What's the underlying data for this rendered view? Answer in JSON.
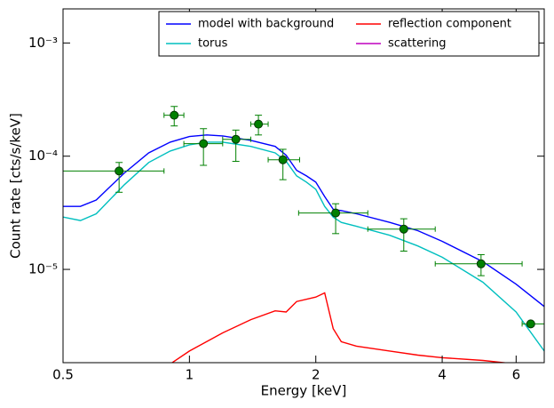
{
  "chart_data": {
    "type": "line",
    "xlabel": "Energy [keV]",
    "ylabel": "Count rate [cts/s/keV]",
    "xscale": "log",
    "yscale": "log",
    "xlim": [
      0.5,
      7
    ],
    "ylim": [
      1.5e-06,
      0.002
    ],
    "xticks": [
      0.5,
      1,
      2,
      4,
      6
    ],
    "yticks": [
      {
        "value": 1e-05,
        "label": "10⁻⁵"
      },
      {
        "value": 0.0001,
        "label": "10⁻⁴"
      },
      {
        "value": 0.001,
        "label": "10⁻³"
      }
    ],
    "legend": "upper right",
    "legend_columns": 2,
    "x": [
      0.5,
      0.55,
      0.6,
      0.7,
      0.8,
      0.9,
      1.0,
      1.1,
      1.2,
      1.4,
      1.6,
      1.7,
      1.8,
      1.9,
      2.0,
      2.1,
      2.2,
      2.3,
      2.5,
      3.0,
      3.5,
      4.0,
      5.0,
      6.0,
      7.0
    ],
    "series": [
      {
        "name": "model with background",
        "color": "#0000ff",
        "values": [
          3.6e-05,
          3.6e-05,
          4.1e-05,
          7.1e-05,
          0.000107,
          0.000133,
          0.000149,
          0.000154,
          0.000151,
          0.000138,
          0.000122,
          0.000102,
          7.5e-05,
          6.7e-05,
          5.9e-05,
          4.4e-05,
          3.4e-05,
          3.3e-05,
          3.1e-05,
          2.6e-05,
          2.2e-05,
          1.77e-05,
          1.17e-05,
          7.4e-06,
          4.7e-06
        ]
      },
      {
        "name": "torus",
        "color": "#00bfbf",
        "values": [
          2.9e-05,
          2.7e-05,
          3.1e-05,
          5.6e-05,
          8.8e-05,
          0.000111,
          0.000126,
          0.000133,
          0.000133,
          0.000122,
          0.000107,
          9e-05,
          6.7e-05,
          5.9e-05,
          5.1e-05,
          3.6e-05,
          2.9e-05,
          2.6e-05,
          2.4e-05,
          2e-05,
          1.61e-05,
          1.28e-05,
          7.7e-06,
          4.2e-06,
          1.9e-06
        ]
      },
      {
        "name": "reflection component",
        "color": "#ff0000",
        "x": [
          0.9,
          1.0,
          1.2,
          1.4,
          1.6,
          1.7,
          1.8,
          2.0,
          2.1,
          2.2,
          2.3,
          2.5,
          3.0,
          3.5,
          4.0,
          5.0,
          6.0
        ],
        "values": [
          1.46e-06,
          1.9e-06,
          2.75e-06,
          3.6e-06,
          4.3e-06,
          4.2e-06,
          5.2e-06,
          5.7e-06,
          6.2e-06,
          3e-06,
          2.3e-06,
          2.1e-06,
          1.9e-06,
          1.75e-06,
          1.66e-06,
          1.57e-06,
          1.46e-06
        ]
      },
      {
        "name": "scattering",
        "color": "#bf00bf",
        "values": [
          null,
          null,
          null,
          null,
          null,
          null,
          null,
          null,
          null,
          null,
          null,
          null,
          null,
          null,
          null,
          null,
          null,
          null,
          null,
          null,
          null,
          null,
          null,
          null,
          null
        ]
      }
    ],
    "data_points": {
      "color": "#008000",
      "x": [
        0.68,
        0.92,
        1.08,
        1.29,
        1.46,
        1.67,
        2.23,
        3.24,
        4.95,
        6.5
      ],
      "values": [
        7.4e-05,
        0.00023,
        0.000129,
        0.000141,
        0.000192,
        9.3e-05,
        3.15e-05,
        2.27e-05,
        1.12e-05,
        3.3e-06
      ],
      "x_low": [
        0.5,
        0.87,
        0.97,
        1.2,
        1.4,
        1.54,
        1.82,
        2.66,
        3.85,
        6.2
      ],
      "x_high": [
        0.87,
        0.97,
        1.2,
        1.4,
        1.54,
        1.83,
        2.66,
        3.85,
        6.2,
        7
      ],
      "y_low": [
        4.8e-05,
        0.000185,
        8.3e-05,
        9e-05,
        0.000154,
        6.2e-05,
        2.07e-05,
        1.45e-05,
        8.8e-06,
        null
      ],
      "y_high": [
        8.8e-05,
        0.000275,
        0.000175,
        0.00017,
        0.00023,
        0.000115,
        3.8e-05,
        2.8e-05,
        1.35e-05,
        null
      ]
    }
  }
}
